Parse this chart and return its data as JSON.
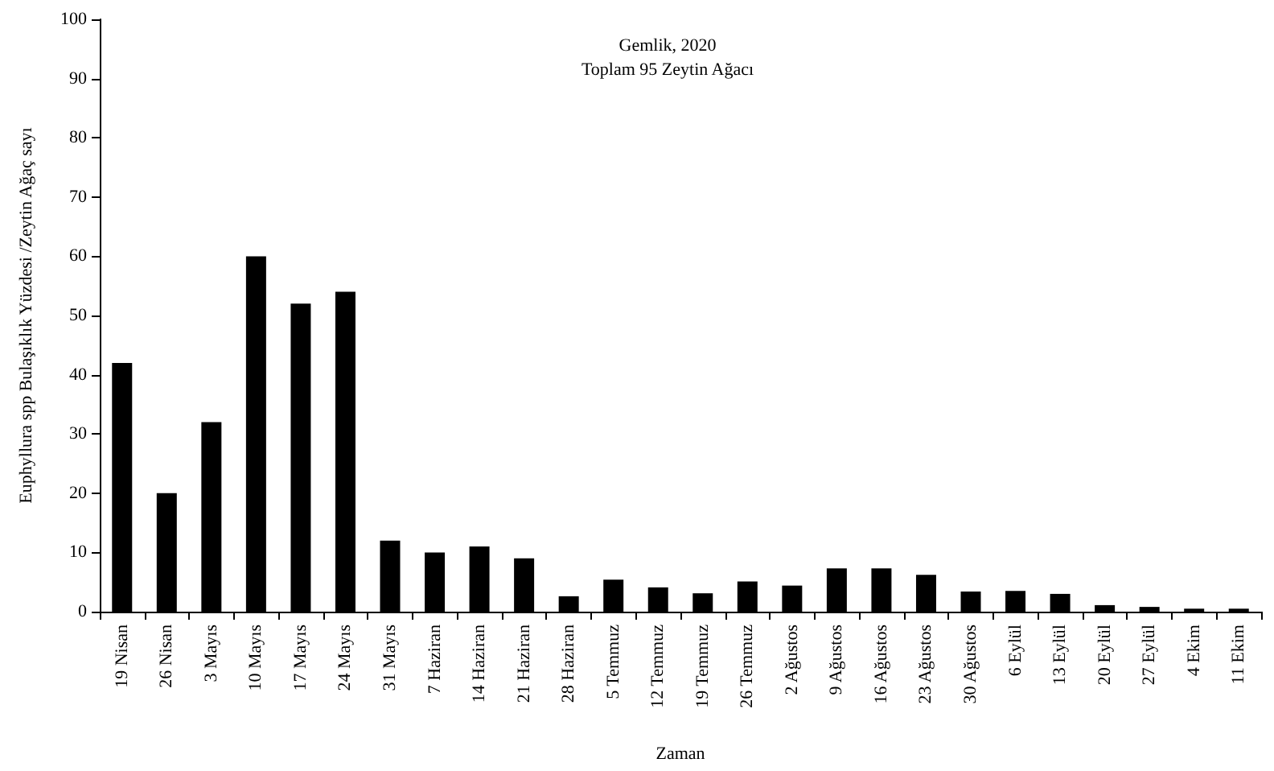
{
  "chart_data": {
    "type": "bar",
    "title": "Gemlik, 2020",
    "subtitle": "Toplam 95 Zeytin Ağacı",
    "xlabel": "Zaman",
    "ylabel": "Euphyllura spp Bulaşıklık Yüzdesi /Zeytin Ağaç sayı",
    "categories": [
      "19 Nisan",
      "26 Nisan",
      "3 Mayıs",
      "10 Mayıs",
      "17 Mayıs",
      "24 Mayıs",
      "31 Mayıs",
      "7 Haziran",
      "14 Haziran",
      "21 Haziran",
      "28 Haziran",
      "5 Temmuz",
      "12 Temmuz",
      "19 Temmuz",
      "26 Temmuz",
      "2 Ağustos",
      "9 Ağustos",
      "16 Ağustos",
      "23 Ağustos",
      "30 Ağustos",
      "6 Eylül",
      "13 Eylül",
      "20 Eylül",
      "27 Eylül",
      "4 Ekim",
      "11 Ekim"
    ],
    "values": [
      42,
      20,
      32,
      60,
      52,
      54,
      12,
      10,
      11,
      9,
      2.6,
      5.4,
      4.1,
      3.1,
      5.1,
      4.4,
      7.3,
      7.3,
      6.2,
      3.4,
      3.5,
      3.0,
      1.1,
      0.8,
      0.5,
      0.5
    ],
    "color": "#000000",
    "ylim": [
      0,
      100
    ],
    "yticks": [
      0,
      10,
      20,
      30,
      40,
      50,
      60,
      70,
      80,
      90,
      100
    ],
    "grid": false
  }
}
